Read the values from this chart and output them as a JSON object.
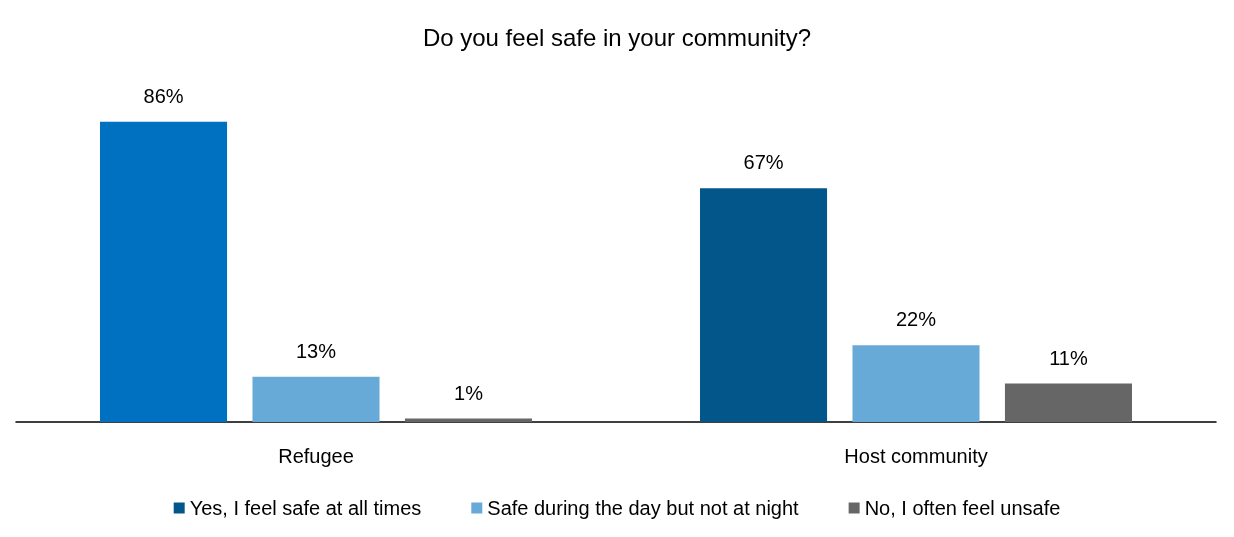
{
  "chart_data": {
    "type": "bar",
    "title": "Do you feel safe in your community?",
    "categories": [
      "Refugee",
      "Host community"
    ],
    "series": [
      {
        "name": "Yes, I feel safe at all times",
        "color": "#03568a",
        "colors": [
          "#0070c0",
          "#03568a"
        ],
        "values": [
          86,
          67
        ],
        "value_labels": [
          "86%",
          "67%"
        ]
      },
      {
        "name": "Safe during the day but not at night",
        "color": "#67aad8",
        "values": [
          13,
          22
        ],
        "value_labels": [
          "13%",
          "22%"
        ]
      },
      {
        "name": "No, I often feel unsafe",
        "color": "#666666",
        "values": [
          1,
          11
        ],
        "value_labels": [
          "1%",
          "11%"
        ]
      }
    ],
    "legend": "bottom"
  }
}
